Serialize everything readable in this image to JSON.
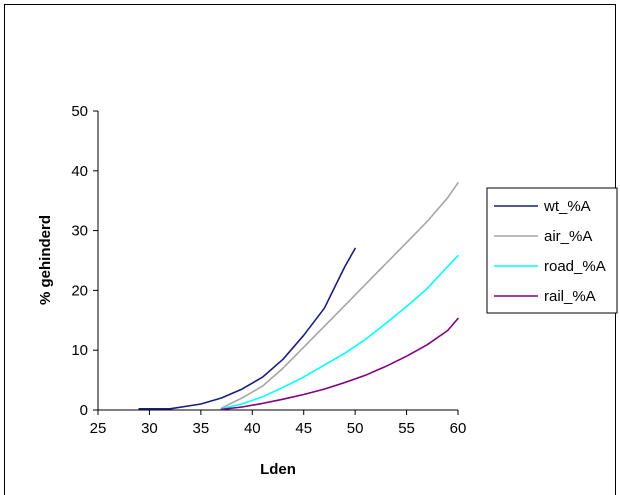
{
  "chart_data": {
    "type": "line",
    "xlabel": "Lden",
    "ylabel": "% gehinderd",
    "xlim": [
      25,
      60
    ],
    "ylim": [
      0,
      50
    ],
    "xticks": [
      25,
      30,
      35,
      40,
      45,
      50,
      55,
      60
    ],
    "yticks": [
      0,
      10,
      20,
      30,
      40,
      50
    ],
    "grid": false,
    "legend_position": "right",
    "series": [
      {
        "name": "wt_%A",
        "color": "#1a1f7a",
        "x": [
          29,
          32,
          35,
          37,
          39,
          41,
          43,
          45,
          47,
          48,
          49,
          50
        ],
        "y": [
          0.2,
          0.2,
          1.0,
          2.0,
          3.5,
          5.5,
          8.5,
          12.5,
          17.0,
          20.5,
          24.0,
          27.0
        ]
      },
      {
        "name": "air_%A",
        "color": "#a6a6a6",
        "x": [
          37,
          39,
          41,
          43,
          45,
          47,
          49,
          51,
          53,
          55,
          57,
          59,
          60
        ],
        "y": [
          0.3,
          2.0,
          4.0,
          7.0,
          10.5,
          14.0,
          17.5,
          21.0,
          24.5,
          28.0,
          31.5,
          35.5,
          38.0
        ]
      },
      {
        "name": "road_%A",
        "color": "#00ffff",
        "x": [
          37,
          39,
          41,
          43,
          45,
          47,
          49,
          51,
          53,
          55,
          57,
          59,
          60
        ],
        "y": [
          0.2,
          1.0,
          2.2,
          3.8,
          5.5,
          7.5,
          9.5,
          11.8,
          14.5,
          17.3,
          20.3,
          24.0,
          25.8
        ]
      },
      {
        "name": "rail_%A",
        "color": "#800080",
        "x": [
          37,
          39,
          41,
          43,
          45,
          47,
          49,
          51,
          53,
          55,
          57,
          59,
          60
        ],
        "y": [
          0.1,
          0.5,
          1.1,
          1.8,
          2.6,
          3.5,
          4.6,
          5.8,
          7.3,
          9.0,
          10.9,
          13.3,
          15.3
        ]
      }
    ]
  }
}
